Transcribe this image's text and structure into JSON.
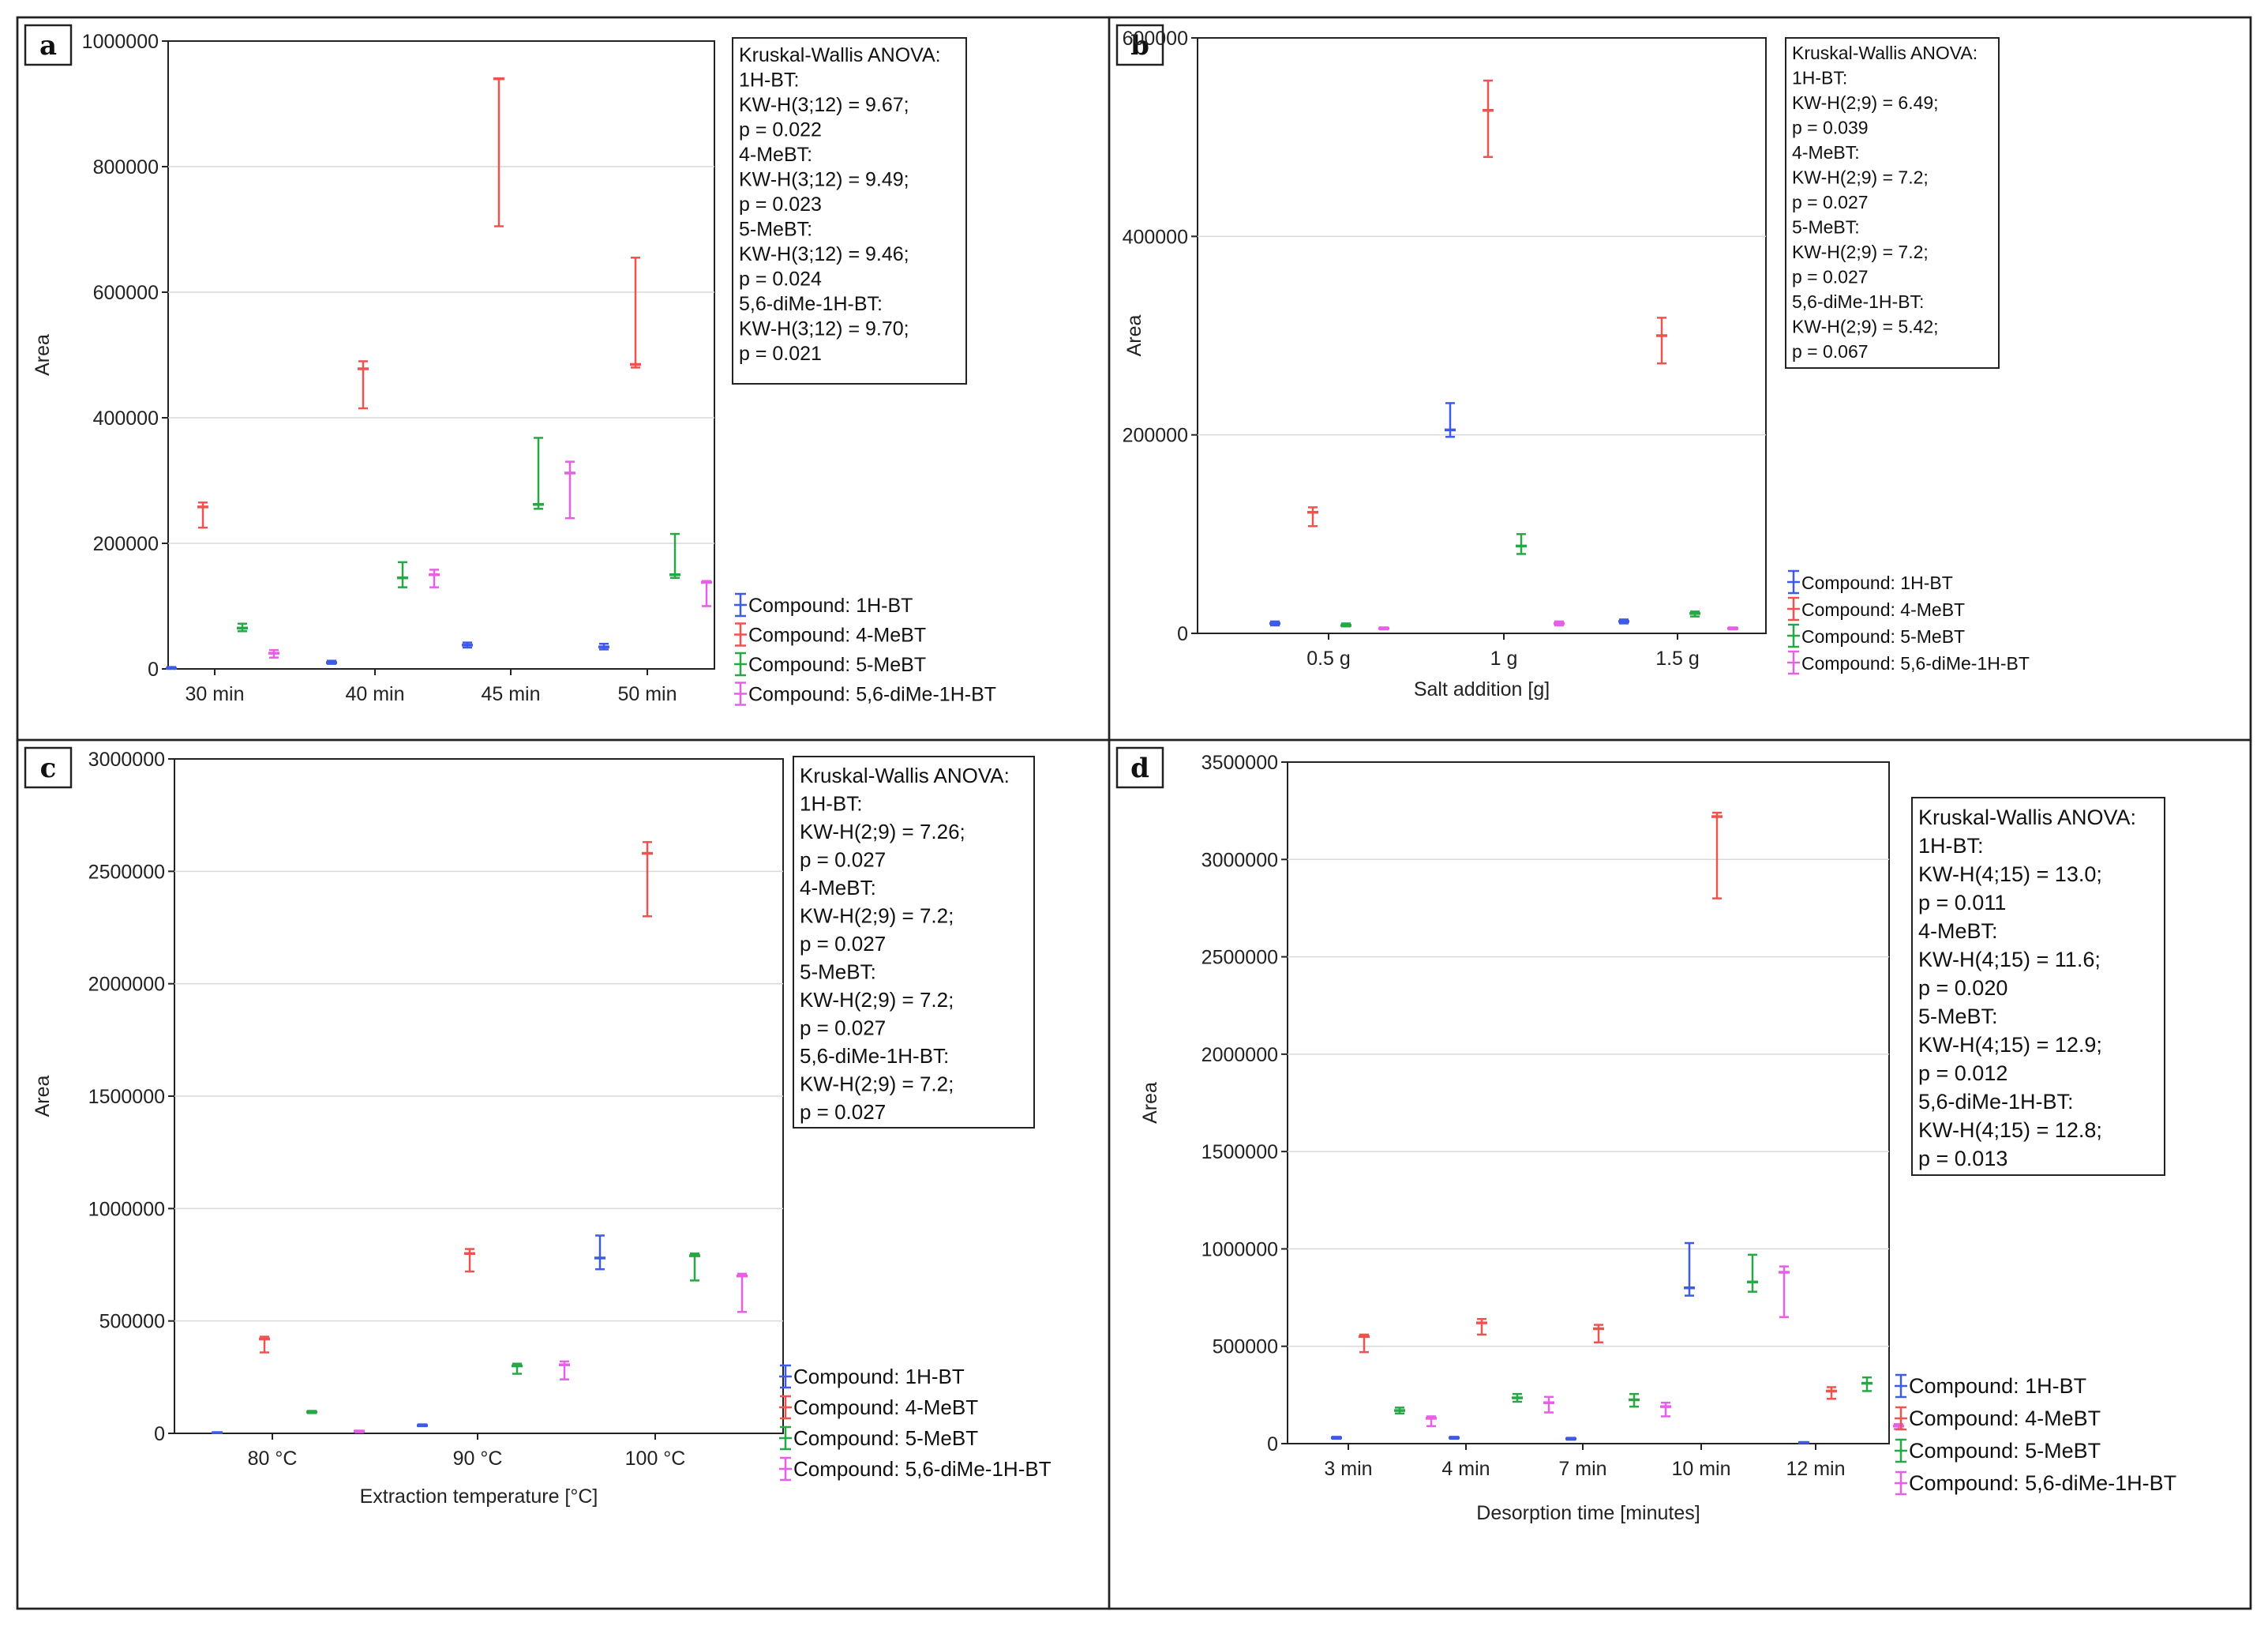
{
  "figure": {
    "panels_note": "four panels a-d"
  },
  "chart_data": [
    {
      "panel": "a",
      "type": "errorbar",
      "xlabel": "",
      "ylabel": "Area",
      "ylim": [
        0,
        1000000
      ],
      "yticks": [
        0,
        200000,
        400000,
        600000,
        800000,
        1000000
      ],
      "yticklabels": [
        "0",
        "200000",
        "400000",
        "600000",
        "800000",
        "1000000"
      ],
      "categories": [
        "30 min",
        "40 min",
        "45 min",
        "50 min"
      ],
      "series": [
        {
          "name": "Compound:  1H-BT",
          "color": "#3d5be8",
          "values": [
            1000,
            10000,
            38000,
            35000
          ],
          "low": [
            0,
            8000,
            34000,
            31000
          ],
          "high": [
            3000,
            13000,
            42000,
            40000
          ]
        },
        {
          "name": "Compound:  4-MeBT",
          "color": "#ef5350",
          "values": [
            258000,
            478000,
            940000,
            485000
          ],
          "low": [
            225000,
            415000,
            705000,
            480000
          ],
          "high": [
            265000,
            490000,
            940000,
            655000
          ]
        },
        {
          "name": "Compound:  5-MeBT",
          "color": "#27a845",
          "values": [
            65000,
            145000,
            262000,
            150000
          ],
          "low": [
            60000,
            130000,
            255000,
            145000
          ],
          "high": [
            72000,
            170000,
            368000,
            215000
          ]
        },
        {
          "name": "Compound:  5,6-diMe-1H-BT",
          "color": "#e75ee8",
          "values": [
            25000,
            150000,
            312000,
            138000
          ],
          "low": [
            18000,
            130000,
            240000,
            100000
          ],
          "high": [
            30000,
            158000,
            330000,
            140000
          ]
        }
      ],
      "annotation": [
        "Kruskal-Wallis ANOVA:",
        "1H-BT:",
        "KW-H(3;12) = 9.67;",
        "p = 0.022",
        "4-MeBT:",
        "KW-H(3;12) = 9.49;",
        "p = 0.023",
        "5-MeBT:",
        "KW-H(3;12) = 9.46;",
        "p = 0.024",
        "5,6-diMe-1H-BT:",
        "KW-H(3;12) = 9.70;",
        "p = 0.021"
      ]
    },
    {
      "panel": "b",
      "type": "errorbar",
      "xlabel": "Salt addition [g]",
      "ylabel": "Area",
      "ylim": [
        0,
        600000
      ],
      "yticks": [
        0,
        200000,
        400000,
        600000
      ],
      "yticklabels": [
        "0",
        "200000",
        "400000",
        "600000"
      ],
      "categories": [
        "0.5 g",
        "1 g",
        "1.5 g"
      ],
      "series": [
        {
          "name": "Compound:  1H-BT",
          "color": "#3d5be8",
          "values": [
            10000,
            205000,
            12000
          ],
          "low": [
            8000,
            198000,
            10000
          ],
          "high": [
            12000,
            232000,
            14000
          ]
        },
        {
          "name": "Compound:  4-MeBT",
          "color": "#ef5350",
          "values": [
            122000,
            527000,
            300000
          ],
          "low": [
            108000,
            480000,
            272000
          ],
          "high": [
            127000,
            557000,
            318000
          ]
        },
        {
          "name": "Compound:  5-MeBT",
          "color": "#27a845",
          "values": [
            8000,
            88000,
            20000
          ],
          "low": [
            7000,
            80000,
            17000
          ],
          "high": [
            10000,
            100000,
            22000
          ]
        },
        {
          "name": "Compound:  5,6-diMe-1H-BT",
          "color": "#e75ee8",
          "values": [
            5000,
            10000,
            5000
          ],
          "low": [
            4000,
            8000,
            4000
          ],
          "high": [
            6000,
            12000,
            6000
          ]
        }
      ],
      "annotation": [
        "Kruskal-Wallis ANOVA:",
        "1H-BT:",
        "KW-H(2;9) = 6.49;",
        "p = 0.039",
        "4-MeBT:",
        "KW-H(2;9) = 7.2;",
        "p = 0.027",
        "5-MeBT:",
        "KW-H(2;9) = 7.2;",
        "p = 0.027",
        "5,6-diMe-1H-BT:",
        "KW-H(2;9) = 5.42;",
        "p = 0.067"
      ]
    },
    {
      "panel": "c",
      "type": "errorbar",
      "xlabel": "Extraction temperature [°C]",
      "ylabel": "Area",
      "ylim": [
        0,
        3000000
      ],
      "yticks": [
        0,
        500000,
        1000000,
        1500000,
        2000000,
        2500000,
        3000000
      ],
      "yticklabels": [
        "0",
        "500000",
        "1000000",
        "1500000",
        "2000000",
        "2500000",
        "3000000"
      ],
      "categories": [
        "80 °C",
        "90 °C",
        "100 °C"
      ],
      "series": [
        {
          "name": "Compound:  1H-BT",
          "color": "#3d5be8",
          "values": [
            3000,
            35000,
            780000
          ],
          "low": [
            2000,
            32000,
            730000
          ],
          "high": [
            5000,
            40000,
            880000
          ]
        },
        {
          "name": "Compound:  4-MeBT",
          "color": "#ef5350",
          "values": [
            420000,
            800000,
            2580000
          ],
          "low": [
            360000,
            720000,
            2300000
          ],
          "high": [
            430000,
            820000,
            2630000
          ]
        },
        {
          "name": "Compound:  5-MeBT",
          "color": "#27a845",
          "values": [
            95000,
            300000,
            790000
          ],
          "low": [
            90000,
            265000,
            680000
          ],
          "high": [
            100000,
            310000,
            800000
          ]
        },
        {
          "name": "Compound:  5,6-diMe-1H-BT",
          "color": "#e75ee8",
          "values": [
            10000,
            305000,
            700000
          ],
          "low": [
            5000,
            240000,
            540000
          ],
          "high": [
            12000,
            320000,
            710000
          ]
        }
      ],
      "annotation": [
        "Kruskal-Wallis ANOVA:",
        "1H-BT:",
        "KW-H(2;9) = 7.26;",
        "p = 0.027",
        "4-MeBT:",
        "KW-H(2;9) = 7.2;",
        "p = 0.027",
        "5-MeBT:",
        "KW-H(2;9) = 7.2;",
        "p = 0.027",
        "5,6-diMe-1H-BT:",
        "KW-H(2;9) = 7.2;",
        "p = 0.027"
      ]
    },
    {
      "panel": "d",
      "type": "errorbar",
      "xlabel": "Desorption time [minutes]",
      "ylabel": "Area",
      "ylim": [
        0,
        3500000
      ],
      "yticks": [
        0,
        500000,
        1000000,
        1500000,
        2000000,
        2500000,
        3000000,
        3500000
      ],
      "yticklabels": [
        "0",
        "500000",
        "1000000",
        "1500000",
        "2000000",
        "2500000",
        "3000000",
        "3500000"
      ],
      "categories": [
        "3 min",
        "4 min",
        "7 min",
        "10 min",
        "12 min"
      ],
      "series": [
        {
          "name": "Compound:  1H-BT",
          "color": "#3d5be8",
          "values": [
            30000,
            30000,
            25000,
            800000,
            5000
          ],
          "low": [
            25000,
            25000,
            20000,
            760000,
            3000
          ],
          "high": [
            35000,
            35000,
            30000,
            1030000,
            8000
          ]
        },
        {
          "name": "Compound:  4-MeBT",
          "color": "#ef5350",
          "values": [
            550000,
            620000,
            590000,
            3220000,
            270000
          ],
          "low": [
            470000,
            560000,
            520000,
            2800000,
            230000
          ],
          "high": [
            560000,
            640000,
            610000,
            3240000,
            290000
          ]
        },
        {
          "name": "Compound:  5-MeBT",
          "color": "#27a845",
          "values": [
            170000,
            235000,
            225000,
            830000,
            310000
          ],
          "low": [
            155000,
            215000,
            190000,
            780000,
            270000
          ],
          "high": [
            185000,
            255000,
            255000,
            970000,
            340000
          ]
        },
        {
          "name": "Compound:  5,6-diMe-1H-BT",
          "color": "#e75ee8",
          "values": [
            130000,
            210000,
            190000,
            880000,
            90000
          ],
          "low": [
            90000,
            160000,
            140000,
            650000,
            75000
          ],
          "high": [
            140000,
            240000,
            210000,
            910000,
            100000
          ]
        }
      ],
      "annotation": [
        "Kruskal-Wallis ANOVA:",
        "1H-BT:",
        "KW-H(4;15) = 13.0;",
        "p = 0.011",
        "4-MeBT:",
        "KW-H(4;15) = 11.6;",
        "p = 0.020",
        "5-MeBT:",
        "KW-H(4;15) = 12.9;",
        "p = 0.012",
        "5,6-diMe-1H-BT:",
        "KW-H(4;15) = 12.8;",
        "p = 0.013"
      ]
    }
  ]
}
